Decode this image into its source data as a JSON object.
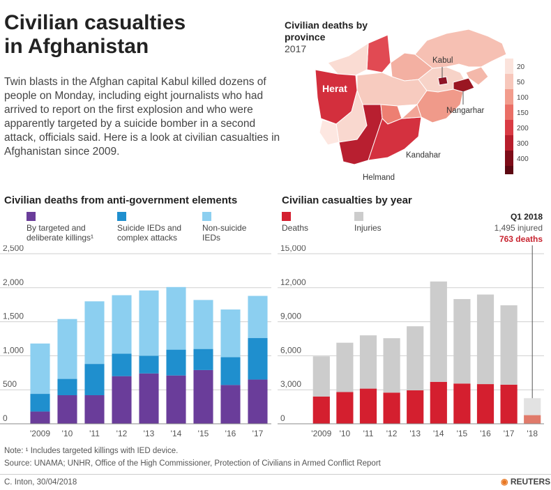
{
  "header": {
    "title_line1": "Civilian casualties",
    "title_line2": "in Afghanistan",
    "intro": "Twin blasts in the Afghan capital Kabul killed dozens of people on Monday, including eight journalists who had arrived to report on the first explosion and who were apparently targeted by a suicide bomber in a second attack, officials said. Here is a look at civilian casualties in Afghanistan since 2009."
  },
  "map": {
    "title": "Civilian deaths by province",
    "year": "2017",
    "labels": {
      "kabul": "Kabul",
      "herat": "Herat",
      "nangarhar": "Nangarhar",
      "kandahar": "Kandahar",
      "helmand": "Helmand"
    },
    "scale": [
      "20",
      "50",
      "100",
      "150",
      "200",
      "300",
      "400"
    ],
    "scale_colors": [
      "#fbe3dc",
      "#f7c7bb",
      "#f29c8c",
      "#ea6f66",
      "#d93b44",
      "#b71e2c",
      "#7d0c18"
    ]
  },
  "colors": {
    "targeted": "#6a3d9a",
    "suicide": "#1f8fce",
    "nonsuicide": "#8ccff0",
    "deaths": "#d41f2f",
    "injuries": "#cccccc",
    "q1_deaths": "#e07a6a",
    "q1_injuries": "#e2e2e2"
  },
  "notes": {
    "note": "Note: ¹ Includes targeted killings with IED device.",
    "source": "Source: UNAMA; UNHR, Office of the High Commissioner, Protection of Civilians in Armed Conflict Report",
    "credit": "C. Inton, 30/04/2018",
    "brand": "REUTERS"
  },
  "chart_data": [
    {
      "type": "bar",
      "stacked": true,
      "title": "Civilian deaths from anti-government elements",
      "categories": [
        "'2009",
        "'10",
        "'11",
        "'12",
        "'13",
        "'14",
        "'15",
        "'16",
        "'17"
      ],
      "series": [
        {
          "name": "By targeted and deliberate killings¹",
          "values": [
            180,
            420,
            420,
            700,
            740,
            710,
            790,
            570,
            650
          ]
        },
        {
          "name": "Suicide IEDs and complex attacks",
          "values": [
            260,
            240,
            460,
            330,
            260,
            380,
            310,
            410,
            610
          ]
        },
        {
          "name": "Non-suicide IEDs",
          "values": [
            740,
            880,
            920,
            860,
            960,
            920,
            720,
            700,
            620
          ]
        }
      ],
      "legend_lines": [
        [
          "By targeted and",
          "deliberate killings¹"
        ],
        [
          "Suicide IEDs and",
          "complex attacks"
        ],
        [
          "Non-suicide",
          "IEDs"
        ]
      ],
      "ylim": [
        0,
        2500
      ],
      "yticks": [
        "0",
        "500",
        "1,000",
        "1,500",
        "2,000",
        "2,500"
      ],
      "ytick_values": [
        0,
        500,
        1000,
        1500,
        2000,
        2500
      ],
      "grid": true
    },
    {
      "type": "bar",
      "stacked": true,
      "title": "Civilian casualties by year",
      "categories": [
        "'2009",
        "'10",
        "'11",
        "'12",
        "'13",
        "'14",
        "'15",
        "'16",
        "'17",
        "'18"
      ],
      "series": [
        {
          "name": "Deaths",
          "values": [
            2400,
            2800,
            3100,
            2750,
            2950,
            3700,
            3550,
            3500,
            3450,
            763
          ]
        },
        {
          "name": "Injuries",
          "values": [
            3550,
            4350,
            4700,
            4800,
            5650,
            8850,
            7450,
            7900,
            7000,
            1495
          ]
        }
      ],
      "ylim": [
        0,
        15000
      ],
      "yticks": [
        "0",
        "3,000",
        "6,000",
        "9,000",
        "12,000",
        "15,000"
      ],
      "ytick_values": [
        0,
        3000,
        6000,
        9000,
        12000,
        15000
      ],
      "grid": true,
      "annotation": {
        "label": "Q1 2018",
        "injured": "1,495 injured",
        "deaths": "763 deaths"
      }
    }
  ]
}
